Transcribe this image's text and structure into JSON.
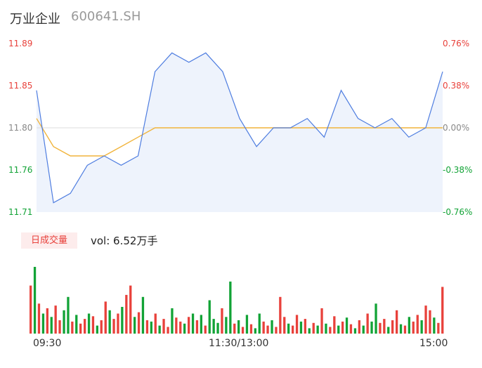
{
  "header": {
    "name": "万业企业",
    "code": "600641.SH"
  },
  "colors": {
    "up": "#e8413b",
    "down": "#12a336",
    "price_line": "#4e7de0",
    "avg_line": "#f1b43b",
    "neutral": "#888888"
  },
  "price_axis": {
    "left_labels": [
      "11.89",
      "11.85",
      "11.80",
      "11.76",
      "11.71"
    ],
    "right_labels": [
      "0.76%",
      "0.38%",
      "0.00%",
      "-0.38%",
      "-0.76%"
    ]
  },
  "volume": {
    "badge": "日成交量",
    "text": "vol: 6.52万手"
  },
  "time_labels": [
    "09:30",
    "11:30/13:00",
    "15:00"
  ],
  "chart_data": {
    "type": "line",
    "title": "",
    "ylim": [
      11.71,
      11.89
    ],
    "prev_close": 11.8,
    "x": [
      "09:30",
      "09:40",
      "09:50",
      "10:00",
      "10:10",
      "10:20",
      "10:30",
      "10:40",
      "10:50",
      "11:00",
      "11:10",
      "11:20",
      "11:30/13:00",
      "13:10",
      "13:20",
      "13:30",
      "13:40",
      "13:50",
      "14:00",
      "14:10",
      "14:20",
      "14:30",
      "14:40",
      "14:50",
      "15:00"
    ],
    "series": [
      {
        "values": [
          11.84,
          11.72,
          11.73,
          11.76,
          11.77,
          11.76,
          11.77,
          11.86,
          11.88,
          11.87,
          11.88,
          11.86,
          11.81,
          11.78,
          11.8,
          11.8,
          11.81,
          11.79,
          11.84,
          11.81,
          11.8,
          11.81,
          11.79,
          11.8,
          11.86
        ]
      },
      {
        "values": [
          11.81,
          11.78,
          11.77,
          11.77,
          11.77,
          11.78,
          11.79,
          11.8,
          11.8,
          11.8,
          11.8,
          11.8,
          11.8,
          11.8,
          11.8,
          11.8,
          11.8,
          11.8,
          11.8,
          11.8,
          11.8,
          11.8,
          11.8,
          11.8,
          11.8
        ]
      }
    ],
    "volume_bars": [
      {
        "v": 72,
        "up": true
      },
      {
        "v": 100,
        "up": false
      },
      {
        "v": 45,
        "up": true
      },
      {
        "v": 30,
        "up": false
      },
      {
        "v": 38,
        "up": true
      },
      {
        "v": 25,
        "up": false
      },
      {
        "v": 42,
        "up": true
      },
      {
        "v": 20,
        "up": true
      },
      {
        "v": 35,
        "up": false
      },
      {
        "v": 55,
        "up": false
      },
      {
        "v": 18,
        "up": true
      },
      {
        "v": 28,
        "up": false
      },
      {
        "v": 15,
        "up": true
      },
      {
        "v": 22,
        "up": true
      },
      {
        "v": 30,
        "up": false
      },
      {
        "v": 26,
        "up": true
      },
      {
        "v": 12,
        "up": false
      },
      {
        "v": 20,
        "up": true
      },
      {
        "v": 48,
        "up": true
      },
      {
        "v": 35,
        "up": false
      },
      {
        "v": 22,
        "up": true
      },
      {
        "v": 30,
        "up": true
      },
      {
        "v": 40,
        "up": false
      },
      {
        "v": 58,
        "up": true
      },
      {
        "v": 72,
        "up": true
      },
      {
        "v": 25,
        "up": false
      },
      {
        "v": 32,
        "up": true
      },
      {
        "v": 55,
        "up": false
      },
      {
        "v": 20,
        "up": true
      },
      {
        "v": 18,
        "up": false
      },
      {
        "v": 30,
        "up": true
      },
      {
        "v": 12,
        "up": false
      },
      {
        "v": 22,
        "up": true
      },
      {
        "v": 10,
        "up": true
      },
      {
        "v": 38,
        "up": false
      },
      {
        "v": 24,
        "up": true
      },
      {
        "v": 18,
        "up": true
      },
      {
        "v": 15,
        "up": false
      },
      {
        "v": 25,
        "up": true
      },
      {
        "v": 30,
        "up": false
      },
      {
        "v": 20,
        "up": true
      },
      {
        "v": 28,
        "up": false
      },
      {
        "v": 12,
        "up": true
      },
      {
        "v": 50,
        "up": false
      },
      {
        "v": 22,
        "up": false
      },
      {
        "v": 16,
        "up": false
      },
      {
        "v": 38,
        "up": true
      },
      {
        "v": 25,
        "up": false
      },
      {
        "v": 78,
        "up": false
      },
      {
        "v": 15,
        "up": true
      },
      {
        "v": 20,
        "up": false
      },
      {
        "v": 10,
        "up": true
      },
      {
        "v": 28,
        "up": false
      },
      {
        "v": 14,
        "up": true
      },
      {
        "v": 8,
        "up": false
      },
      {
        "v": 30,
        "up": false
      },
      {
        "v": 18,
        "up": true
      },
      {
        "v": 12,
        "up": true
      },
      {
        "v": 20,
        "up": false
      },
      {
        "v": 10,
        "up": true
      },
      {
        "v": 55,
        "up": true
      },
      {
        "v": 25,
        "up": true
      },
      {
        "v": 15,
        "up": false
      },
      {
        "v": 12,
        "up": true
      },
      {
        "v": 28,
        "up": true
      },
      {
        "v": 18,
        "up": false
      },
      {
        "v": 22,
        "up": true
      },
      {
        "v": 8,
        "up": false
      },
      {
        "v": 16,
        "up": true
      },
      {
        "v": 12,
        "up": false
      },
      {
        "v": 38,
        "up": true
      },
      {
        "v": 15,
        "up": false
      },
      {
        "v": 10,
        "up": true
      },
      {
        "v": 26,
        "up": true
      },
      {
        "v": 12,
        "up": false
      },
      {
        "v": 18,
        "up": true
      },
      {
        "v": 24,
        "up": false
      },
      {
        "v": 14,
        "up": true
      },
      {
        "v": 8,
        "up": false
      },
      {
        "v": 20,
        "up": true
      },
      {
        "v": 12,
        "up": false
      },
      {
        "v": 30,
        "up": true
      },
      {
        "v": 18,
        "up": false
      },
      {
        "v": 45,
        "up": false
      },
      {
        "v": 16,
        "up": true
      },
      {
        "v": 22,
        "up": true
      },
      {
        "v": 10,
        "up": false
      },
      {
        "v": 20,
        "up": true
      },
      {
        "v": 35,
        "up": true
      },
      {
        "v": 14,
        "up": false
      },
      {
        "v": 12,
        "up": true
      },
      {
        "v": 25,
        "up": false
      },
      {
        "v": 18,
        "up": true
      },
      {
        "v": 28,
        "up": true
      },
      {
        "v": 20,
        "up": false
      },
      {
        "v": 42,
        "up": true
      },
      {
        "v": 35,
        "up": true
      },
      {
        "v": 24,
        "up": false
      },
      {
        "v": 16,
        "up": true
      },
      {
        "v": 70,
        "up": true
      }
    ]
  }
}
